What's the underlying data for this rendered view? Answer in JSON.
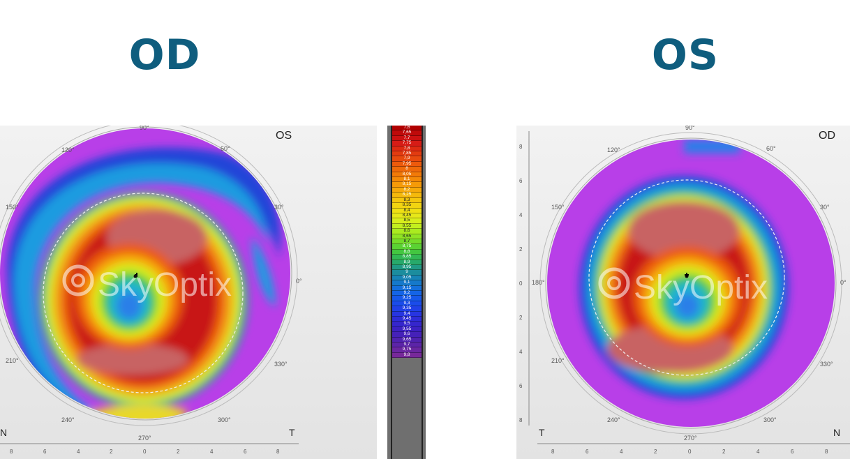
{
  "titles": {
    "left": "OD",
    "right": "OS"
  },
  "colors": {
    "title": "#0f5d7e"
  },
  "maps": [
    {
      "corner_label": "OS",
      "left_label": "N",
      "right_label": "T",
      "angle_labels": [
        "90°",
        "60°",
        "30°",
        "0°",
        "330°",
        "300°",
        "270°",
        "240°",
        "210°",
        "150°",
        "120°"
      ],
      "axis_ticks": [
        "8",
        "6",
        "4",
        "2",
        "0",
        "2",
        "4",
        "6",
        "8"
      ],
      "watermark": "SkyOptix"
    },
    {
      "corner_label": "OD",
      "left_label": "T",
      "right_label": "N",
      "angle_labels": [
        "90°",
        "60°",
        "30°",
        "0°",
        "330°",
        "300°",
        "270°",
        "240°",
        "210°",
        "180°",
        "150°",
        "120°"
      ],
      "axis_ticks": [
        "8",
        "6",
        "4",
        "2",
        "0",
        "2",
        "4",
        "6",
        "8"
      ],
      "y_ticks": [
        "8",
        "6",
        "4",
        "2",
        "0",
        "2",
        "4",
        "6",
        "8"
      ],
      "watermark": "SkyOptix"
    }
  ],
  "scale": {
    "labels": [
      "7,6",
      "7,65",
      "7,7",
      "7,75",
      "7,8",
      "7,85",
      "7,9",
      "7,95",
      "8",
      "8,05",
      "8,1",
      "8,15",
      "8,2",
      "8,25",
      "8,3",
      "8,35",
      "8,4",
      "8,45",
      "8,5",
      "8,55",
      "8,6",
      "8,65",
      "8,7",
      "8,75",
      "8,8",
      "8,85",
      "8,9",
      "8,95",
      "9",
      "9,05",
      "9,1",
      "9,15",
      "9,2",
      "9,25",
      "9,3",
      "9,35",
      "9,4",
      "9,45",
      "9,5",
      "9,55",
      "9,6",
      "9,65",
      "9,7",
      "9,75",
      "9,8"
    ],
    "colors": [
      "#b10000",
      "#bf0a0a",
      "#cc1111",
      "#d61c16",
      "#de2b12",
      "#e33b10",
      "#e84a0e",
      "#ec5a0c",
      "#ef6a0a",
      "#f27a08",
      "#f48a08",
      "#f59a08",
      "#f6aa0a",
      "#f5b90c",
      "#f4c70e",
      "#f2d411",
      "#efe014",
      "#e6e81a",
      "#d8ee1c",
      "#c3ef1e",
      "#aaeb20",
      "#8fe424",
      "#74dc2a",
      "#5ad233",
      "#43c640",
      "#32b855",
      "#27a96b",
      "#209a85",
      "#1b8d9e",
      "#1784b6",
      "#1579cb",
      "#146fdc",
      "#1464e6",
      "#1658ea",
      "#1a4ceb",
      "#2040e8",
      "#2735e1",
      "#2e2cd8",
      "#3526cd",
      "#3c21c3",
      "#4521b9",
      "#5022b0",
      "#5c24a8",
      "#6a26a1",
      "#77289a"
    ]
  }
}
